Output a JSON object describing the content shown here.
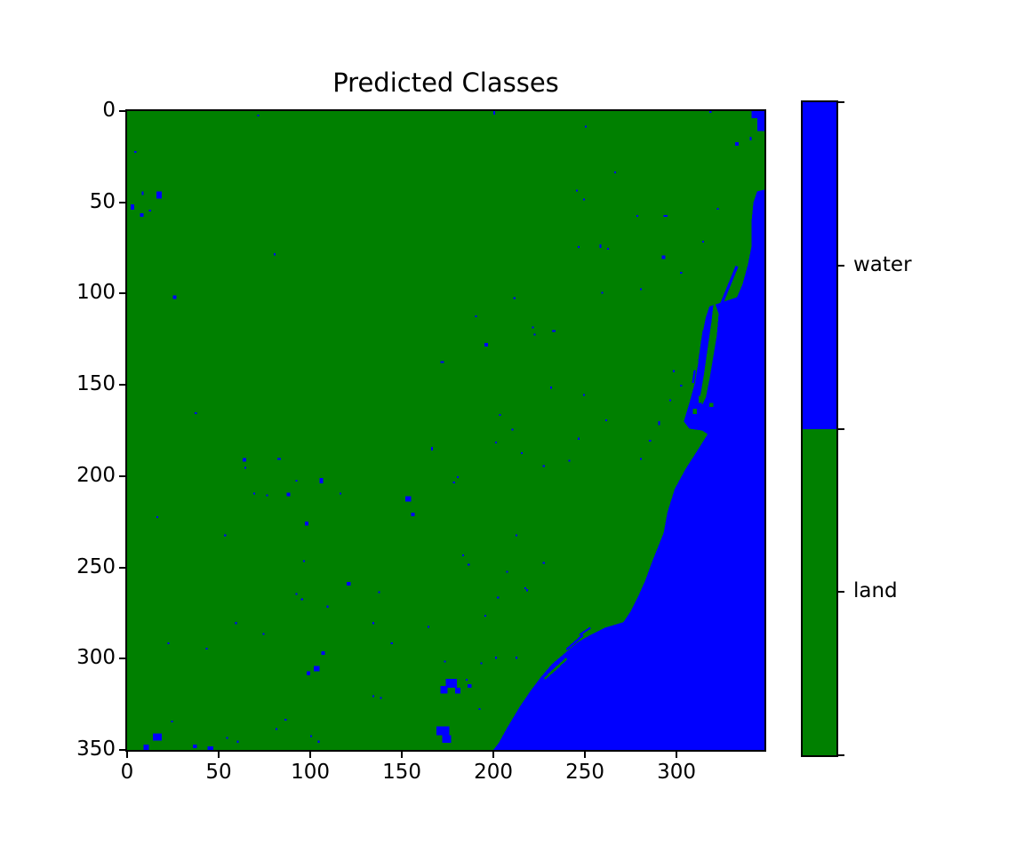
{
  "figure": {
    "title": "Predicted Classes",
    "background": "#ffffff"
  },
  "chart_data": {
    "type": "heatmap",
    "title": "Predicted Classes",
    "xlabel": "",
    "ylabel": "",
    "x_ticks": [
      0,
      50,
      100,
      150,
      200,
      250,
      300
    ],
    "y_ticks": [
      0,
      50,
      100,
      150,
      200,
      250,
      300,
      350
    ],
    "x_range": [
      0,
      348
    ],
    "y_range": [
      0,
      350
    ],
    "grid": false,
    "legend_position": "none",
    "classes": [
      {
        "name": "water",
        "color": "#0000ff"
      },
      {
        "name": "land",
        "color": "#008000"
      }
    ],
    "colorbar": {
      "orientation": "vertical",
      "order_top_to_bottom": [
        "water",
        "land"
      ],
      "labels": [
        "water",
        "land"
      ]
    },
    "map": {
      "background_class": "land",
      "description": "Land/water classification map: green land mass with a curved coastline, blue ocean filling the lower-right, a narrow water strip along the upper-right edge, a barrier spit with lagoon near x=315-325, and many small scattered water speckles inland.",
      "ocean_polygon": [
        [
          348,
          43
        ],
        [
          344,
          44
        ],
        [
          342,
          50
        ],
        [
          341,
          60
        ],
        [
          341,
          74
        ],
        [
          339,
          84
        ],
        [
          336,
          95
        ],
        [
          333,
          102
        ],
        [
          327,
          104
        ],
        [
          321,
          106
        ],
        [
          318,
          107
        ],
        [
          316,
          113
        ],
        [
          314,
          123
        ],
        [
          312,
          137
        ],
        [
          310,
          149
        ],
        [
          307,
          160
        ],
        [
          304,
          170
        ],
        [
          307,
          174
        ],
        [
          314,
          175
        ],
        [
          317,
          177
        ],
        [
          312,
          185
        ],
        [
          305,
          196
        ],
        [
          299,
          207
        ],
        [
          295,
          220
        ],
        [
          293,
          231
        ],
        [
          287,
          246
        ],
        [
          283,
          257
        ],
        [
          279,
          266
        ],
        [
          275,
          274
        ],
        [
          271,
          280
        ],
        [
          261,
          283
        ],
        [
          253,
          287
        ],
        [
          246,
          291
        ],
        [
          239,
          297
        ],
        [
          232,
          303
        ],
        [
          226,
          310
        ],
        [
          220,
          318
        ],
        [
          214,
          327
        ],
        [
          208,
          337
        ],
        [
          203,
          346
        ],
        [
          200,
          350
        ],
        [
          348,
          350
        ]
      ],
      "corner_water_rects": [
        [
          341,
          0,
          7,
          4
        ],
        [
          344,
          4,
          4,
          7
        ]
      ],
      "barrier_spit_polygon": [
        [
          321,
          105
        ],
        [
          323,
          111
        ],
        [
          322,
          123
        ],
        [
          320,
          135
        ],
        [
          318,
          147
        ],
        [
          316,
          157
        ],
        [
          314,
          161
        ],
        [
          313,
          156
        ],
        [
          315,
          144
        ],
        [
          317,
          130
        ],
        [
          319,
          116
        ],
        [
          320,
          107
        ]
      ],
      "island_rects": [
        [
          309,
          163,
          2,
          3
        ],
        [
          312,
          156,
          1.5,
          4
        ],
        [
          318,
          160,
          2,
          2
        ]
      ],
      "lagoon_lines": [
        [
          333,
          85,
          324,
          107,
          1.6
        ],
        [
          315,
          120,
          312.5,
          137,
          1.4
        ],
        [
          310,
          142,
          309,
          149,
          1.2
        ],
        [
          249,
          287,
          240,
          295,
          1.2
        ],
        [
          253,
          283,
          247,
          287,
          1.0
        ]
      ],
      "offshore_land_lines": [
        [
          240,
          300,
          230,
          309,
          1.2
        ],
        [
          236,
          304,
          228,
          311,
          1.0
        ]
      ],
      "water_speckles": [
        [
          200,
          0,
          1,
          2
        ],
        [
          71,
          2,
          1,
          1
        ],
        [
          250,
          8,
          1,
          1
        ],
        [
          318,
          0,
          1,
          1
        ],
        [
          332,
          17,
          2,
          2
        ],
        [
          340,
          14,
          1,
          2
        ],
        [
          266,
          33,
          1,
          1
        ],
        [
          245,
          43,
          1,
          1
        ],
        [
          249,
          48,
          1,
          1
        ],
        [
          322,
          53,
          1,
          1
        ],
        [
          278,
          57,
          1,
          1
        ],
        [
          293,
          57,
          2,
          1
        ],
        [
          258,
          73,
          1,
          2
        ],
        [
          262,
          75,
          1,
          1
        ],
        [
          246,
          74,
          1,
          1
        ],
        [
          292,
          79,
          2,
          2
        ],
        [
          314,
          71,
          1,
          1
        ],
        [
          4,
          22,
          1,
          1
        ],
        [
          8,
          44,
          1,
          2
        ],
        [
          16,
          44,
          3,
          4
        ],
        [
          2,
          51,
          2,
          3
        ],
        [
          7,
          56,
          2,
          2
        ],
        [
          12,
          54,
          1,
          1
        ],
        [
          80,
          78,
          1,
          1
        ],
        [
          302,
          88,
          1,
          1
        ],
        [
          280,
          97,
          1,
          1
        ],
        [
          259,
          99,
          1,
          1
        ],
        [
          25,
          101,
          2,
          2
        ],
        [
          211,
          102,
          1,
          1
        ],
        [
          190,
          112,
          1,
          1
        ],
        [
          221,
          118,
          1,
          1
        ],
        [
          222,
          122,
          1,
          1
        ],
        [
          232,
          120,
          2,
          1
        ],
        [
          195,
          127,
          2,
          2
        ],
        [
          171,
          137,
          2,
          1
        ],
        [
          298,
          142,
          1,
          1
        ],
        [
          302,
          150,
          1,
          1
        ],
        [
          231,
          151,
          1,
          1
        ],
        [
          249,
          155,
          1,
          1
        ],
        [
          296,
          158,
          1,
          1
        ],
        [
          37,
          165,
          1,
          1
        ],
        [
          203,
          166,
          1,
          1
        ],
        [
          261,
          169,
          1,
          1
        ],
        [
          290,
          170,
          1,
          2
        ],
        [
          210,
          174,
          1,
          1
        ],
        [
          246,
          179,
          1,
          1
        ],
        [
          285,
          180,
          1,
          1
        ],
        [
          201,
          181,
          1,
          1
        ],
        [
          166,
          184,
          1,
          2
        ],
        [
          215,
          187,
          1,
          1
        ],
        [
          63,
          190,
          2,
          2
        ],
        [
          82,
          190,
          2,
          1
        ],
        [
          280,
          190,
          1,
          1
        ],
        [
          64,
          195,
          1,
          1
        ],
        [
          227,
          194,
          1,
          1
        ],
        [
          241,
          191,
          1,
          1
        ],
        [
          92,
          202,
          1,
          1
        ],
        [
          105,
          201,
          2,
          3
        ],
        [
          178,
          203,
          1,
          1
        ],
        [
          180,
          200,
          1,
          1
        ],
        [
          69,
          209,
          1,
          1
        ],
        [
          76,
          210,
          1,
          1
        ],
        [
          87,
          209,
          2,
          2
        ],
        [
          116,
          209,
          1,
          1
        ],
        [
          152,
          211,
          3,
          3
        ],
        [
          155,
          220,
          2,
          2
        ],
        [
          16,
          222,
          1,
          1
        ],
        [
          97,
          225,
          2,
          2
        ],
        [
          53,
          232,
          1,
          1
        ],
        [
          212,
          232,
          1,
          1
        ],
        [
          96,
          246,
          1,
          1
        ],
        [
          227,
          247,
          1,
          1
        ],
        [
          183,
          243,
          1,
          1
        ],
        [
          186,
          248,
          1,
          1
        ],
        [
          207,
          252,
          1,
          1
        ],
        [
          120,
          258,
          2,
          2
        ],
        [
          217,
          261,
          1,
          1
        ],
        [
          218,
          262,
          1,
          1
        ],
        [
          92,
          264,
          1,
          1
        ],
        [
          95,
          267,
          1,
          1
        ],
        [
          109,
          271,
          1,
          1
        ],
        [
          137,
          263,
          1,
          1
        ],
        [
          202,
          266,
          1,
          1
        ],
        [
          195,
          276,
          1,
          1
        ],
        [
          134,
          280,
          1,
          1
        ],
        [
          59,
          280,
          1,
          1
        ],
        [
          164,
          282,
          1,
          1
        ],
        [
          74,
          286,
          1,
          1
        ],
        [
          22,
          291,
          1,
          1
        ],
        [
          43,
          294,
          1,
          1
        ],
        [
          144,
          291,
          1,
          1
        ],
        [
          173,
          301,
          1,
          1
        ],
        [
          193,
          302,
          1,
          1
        ],
        [
          201,
          299,
          1,
          1
        ],
        [
          212,
          299,
          1,
          1
        ],
        [
          185,
          311,
          1,
          1
        ],
        [
          192,
          327,
          1,
          1
        ],
        [
          106,
          296,
          2,
          2
        ],
        [
          102,
          304,
          3,
          3
        ],
        [
          98,
          307,
          2,
          2
        ],
        [
          134,
          320,
          1,
          1
        ],
        [
          138,
          321,
          1,
          1
        ],
        [
          86,
          333,
          1,
          1
        ],
        [
          24,
          334,
          1,
          1
        ],
        [
          81,
          338,
          1,
          1
        ],
        [
          100,
          342,
          1,
          1
        ],
        [
          54,
          343,
          1,
          1
        ],
        [
          104,
          345,
          1,
          1
        ],
        [
          60,
          345,
          1,
          1
        ],
        [
          9,
          347,
          3,
          3
        ],
        [
          44,
          348,
          3,
          2
        ],
        [
          14,
          341,
          5,
          4
        ],
        [
          36,
          347,
          2,
          2
        ],
        [
          174,
          311,
          6,
          5
        ],
        [
          171,
          315,
          4,
          4
        ],
        [
          179,
          316,
          3,
          3
        ],
        [
          186,
          314,
          2,
          2
        ],
        [
          169,
          337,
          7,
          5
        ],
        [
          172,
          342,
          5,
          4
        ]
      ]
    }
  }
}
